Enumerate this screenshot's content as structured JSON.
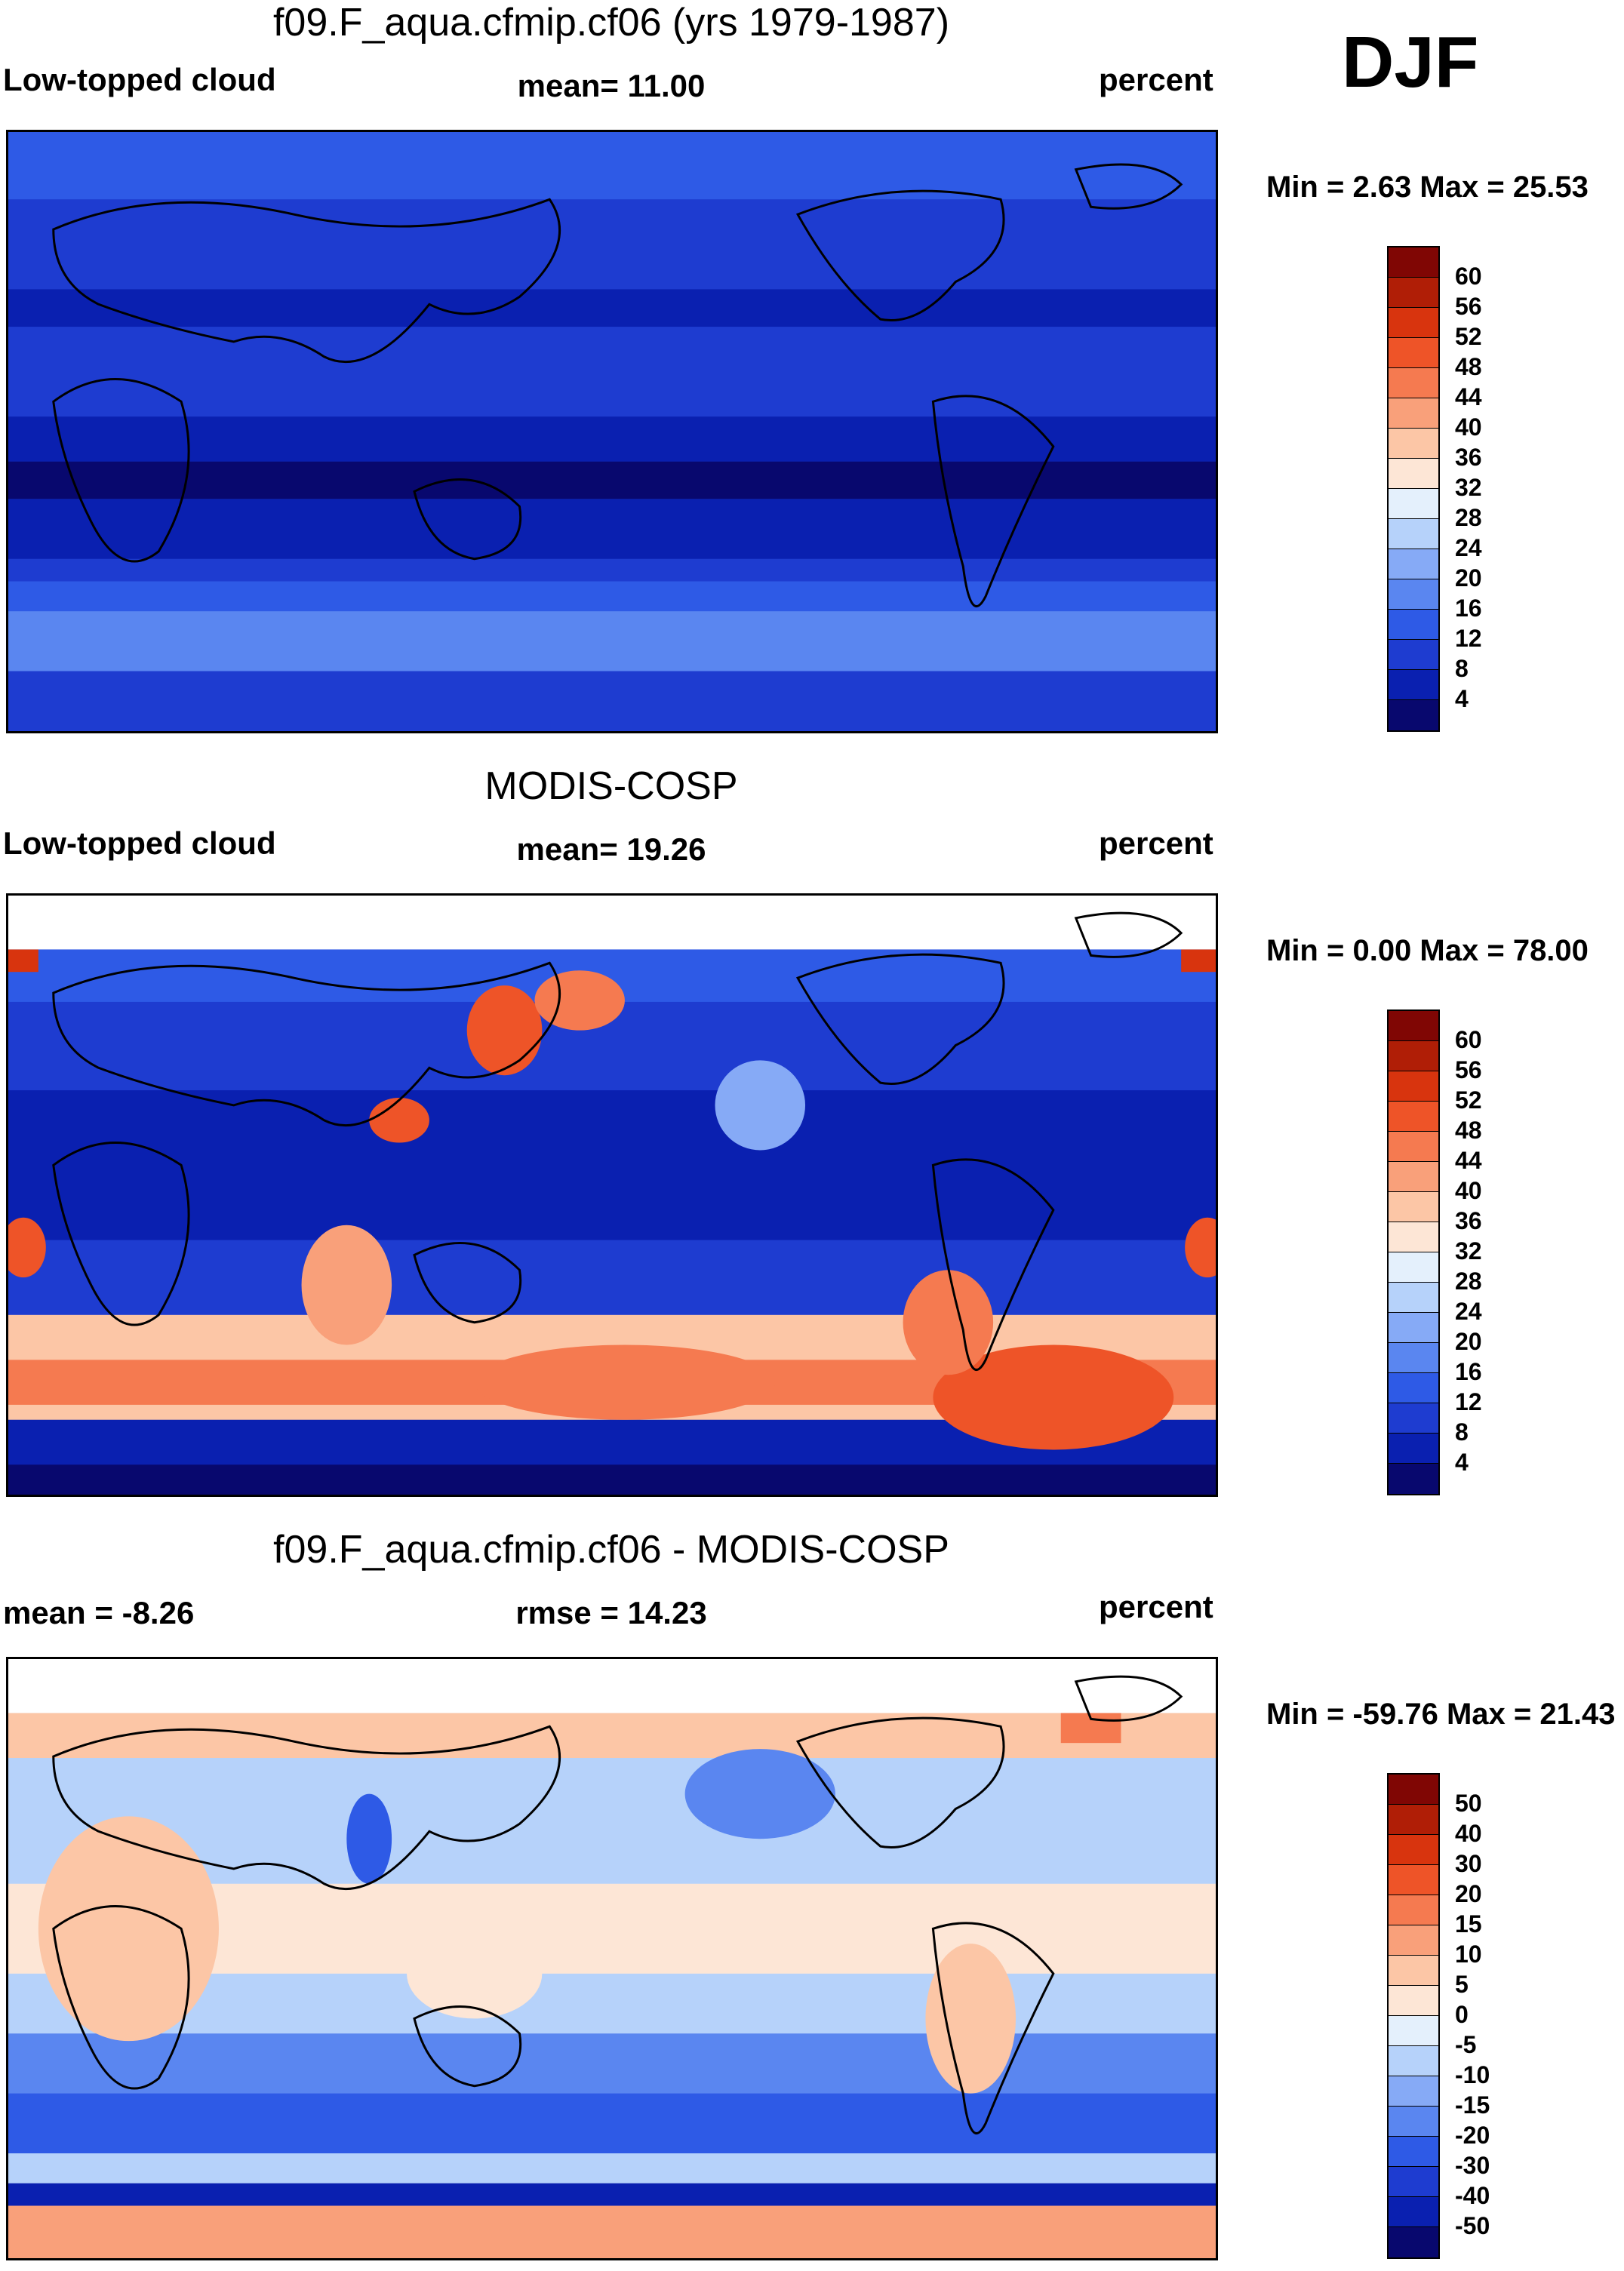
{
  "season": "DJF",
  "panels": [
    {
      "title": "f09.F_aqua.cfmip.cf06 (yrs 1979-1987)",
      "left_label": "Low-topped cloud",
      "center_label": "mean=  11.00",
      "right_label": "percent",
      "minmax": "Min =   2.63 Max =  25.53",
      "colorbar_labels": [
        "60",
        "56",
        "52",
        "48",
        "44",
        "40",
        "36",
        "32",
        "28",
        "24",
        "20",
        "16",
        "12",
        "8",
        "4"
      ]
    },
    {
      "title": "MODIS-COSP",
      "left_label": "Low-topped cloud",
      "center_label": "mean=  19.26",
      "right_label": "percent",
      "minmax": "Min =   0.00 Max =  78.00",
      "colorbar_labels": [
        "60",
        "56",
        "52",
        "48",
        "44",
        "40",
        "36",
        "32",
        "28",
        "24",
        "20",
        "16",
        "12",
        "8",
        "4"
      ]
    },
    {
      "title": "f09.F_aqua.cfmip.cf06 - MODIS-COSP",
      "left_label": "mean =  -8.26",
      "center_label": "rmse =  14.23",
      "right_label": "percent",
      "minmax": "Min = -59.76 Max =  21.43",
      "colorbar_labels": [
        "50",
        "40",
        "30",
        "20",
        "15",
        "10",
        "5",
        "0",
        "-5",
        "-10",
        "-15",
        "-20",
        "-30",
        "-40",
        "-50"
      ]
    }
  ],
  "colors": {
    "cloud_scale": [
      "#08086e",
      "#0a20b0",
      "#1e3cd0",
      "#2e5ae6",
      "#5a86f0",
      "#86aaf6",
      "#b6d2fa",
      "#e4f0fc",
      "#fde6d6",
      "#fcc6a6",
      "#f9a07a",
      "#f57a50",
      "#ee5428",
      "#d8340e",
      "#b01e06",
      "#800604"
    ],
    "diff_scale": [
      "#08086e",
      "#0a20b0",
      "#1e3cd0",
      "#2e5ae6",
      "#5a86f0",
      "#86aaf6",
      "#b6d2fa",
      "#e4f0fc",
      "#fde6d6",
      "#fcc6a6",
      "#f9a07a",
      "#f57a50",
      "#ee5428",
      "#d8340e",
      "#b01e06",
      "#800604"
    ]
  }
}
